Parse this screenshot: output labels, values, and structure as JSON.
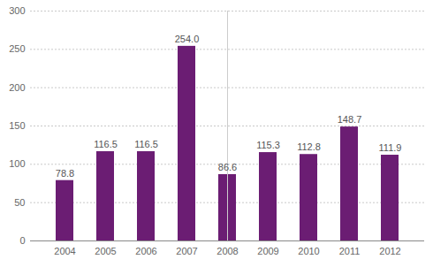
{
  "chart_data": {
    "type": "bar",
    "categories": [
      "2004",
      "2005",
      "2006",
      "2007",
      "2008",
      "2009",
      "2010",
      "2011",
      "2012"
    ],
    "values": [
      78.8,
      116.5,
      116.5,
      254.0,
      86.6,
      115.3,
      112.8,
      148.7,
      111.9
    ],
    "value_labels": [
      "78.8",
      "116.5",
      "116.5",
      "254.0",
      "86.6",
      "115.3",
      "112.8",
      "148.7",
      "111.9"
    ],
    "color": "#6b1d73",
    "ylim": [
      0,
      300
    ],
    "yticks": [
      0,
      50,
      100,
      150,
      200,
      250,
      300
    ],
    "grid": true,
    "data_labels": true
  }
}
